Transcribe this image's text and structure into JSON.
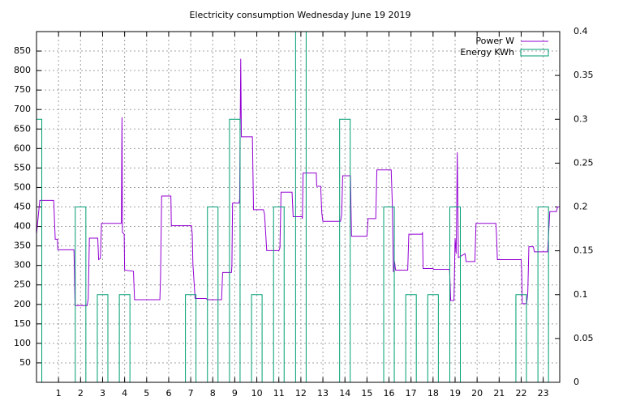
{
  "chart_data": {
    "type": "line",
    "title": "Electricity consumption Wednesday June 19 2019",
    "xlim": [
      0,
      23.75
    ],
    "xticks": [
      1,
      2,
      3,
      4,
      5,
      6,
      7,
      8,
      9,
      10,
      11,
      12,
      13,
      14,
      15,
      16,
      17,
      18,
      19,
      20,
      21,
      22,
      23
    ],
    "ylim": [
      0,
      900
    ],
    "yticks": [
      50,
      100,
      150,
      200,
      250,
      300,
      350,
      400,
      450,
      500,
      550,
      600,
      650,
      700,
      750,
      800,
      850
    ],
    "y2lim": [
      0,
      0.4
    ],
    "y2ticks": [
      0,
      0.05,
      0.1,
      0.15,
      0.2,
      0.25,
      0.3,
      0.35,
      0.4
    ],
    "grid": true,
    "legend": "top-right",
    "series": [
      {
        "name": "Power W",
        "color": "#9400d3",
        "style": "line",
        "x": [
          0,
          0.15,
          0.78,
          0.8,
          0.85,
          0.95,
          0.97,
          1.7,
          1.72,
          1.75,
          2.3,
          2.35,
          2.4,
          2.78,
          2.82,
          2.9,
          2.95,
          3.85,
          3.88,
          3.9,
          3.98,
          4.0,
          4.4,
          4.45,
          5.6,
          5.63,
          5.68,
          6.1,
          6.12,
          7.03,
          7.07,
          7.1,
          7.2,
          7.7,
          7.75,
          8.4,
          8.45,
          8.85,
          8.87,
          8.9,
          9.2,
          9.22,
          9.27,
          9.3,
          9.8,
          9.85,
          10.3,
          10.35,
          10.45,
          11.0,
          11.05,
          11.1,
          11.6,
          11.65,
          12.05,
          12.07,
          12.1,
          12.7,
          12.72,
          12.9,
          12.95,
          13.0,
          13.8,
          13.85,
          13.9,
          14.25,
          14.3,
          15.0,
          15.05,
          15.4,
          15.45,
          16.1,
          16.15,
          16.2,
          16.25,
          16.3,
          16.85,
          16.9,
          17.5,
          17.52,
          17.55,
          18.0,
          18.02,
          18.75,
          18.8,
          18.95,
          19.0,
          19.05,
          19.1,
          19.15,
          19.45,
          19.5,
          19.9,
          19.95,
          20.85,
          20.88,
          20.92,
          22.0,
          22.02,
          22.05,
          22.25,
          22.3,
          22.35,
          22.55,
          22.6,
          23.2,
          23.3,
          23.6,
          23.65,
          23.75
        ],
        "values": [
          380,
          467,
          467,
          440,
          367,
          367,
          340,
          340,
          290,
          197,
          197,
          215,
          370,
          370,
          315,
          318,
          408,
          408,
          680,
          385,
          380,
          288,
          285,
          212,
          212,
          270,
          478,
          478,
          402,
          402,
          380,
          302,
          215,
          215,
          212,
          212,
          282,
          282,
          300,
          460,
          460,
          470,
          830,
          630,
          630,
          443,
          443,
          432,
          338,
          338,
          345,
          488,
          488,
          425,
          425,
          420,
          537,
          537,
          503,
          503,
          435,
          413,
          413,
          430,
          530,
          530,
          375,
          375,
          420,
          420,
          545,
          545,
          460,
          283,
          310,
          288,
          288,
          380,
          380,
          385,
          292,
          292,
          290,
          290,
          210,
          210,
          370,
          330,
          590,
          320,
          330,
          310,
          310,
          408,
          408,
          380,
          315,
          315,
          290,
          202,
          202,
          230,
          348,
          348,
          335,
          335,
          438,
          438,
          450,
          450
        ]
      },
      {
        "name": "Energy KWh",
        "color": "#009e73",
        "style": "boxes",
        "axis": "y2",
        "x": [
          0,
          2,
          3,
          4,
          7,
          8,
          9,
          10,
          11,
          12,
          14,
          16,
          17,
          18,
          19,
          22,
          23
        ],
        "values": [
          0.3,
          0.2,
          0.1,
          0.1,
          0.1,
          0.2,
          0.3,
          0.1,
          0.2,
          0.4,
          0.3,
          0.2,
          0.1,
          0.1,
          0.2,
          0.1,
          0.2
        ]
      }
    ]
  }
}
